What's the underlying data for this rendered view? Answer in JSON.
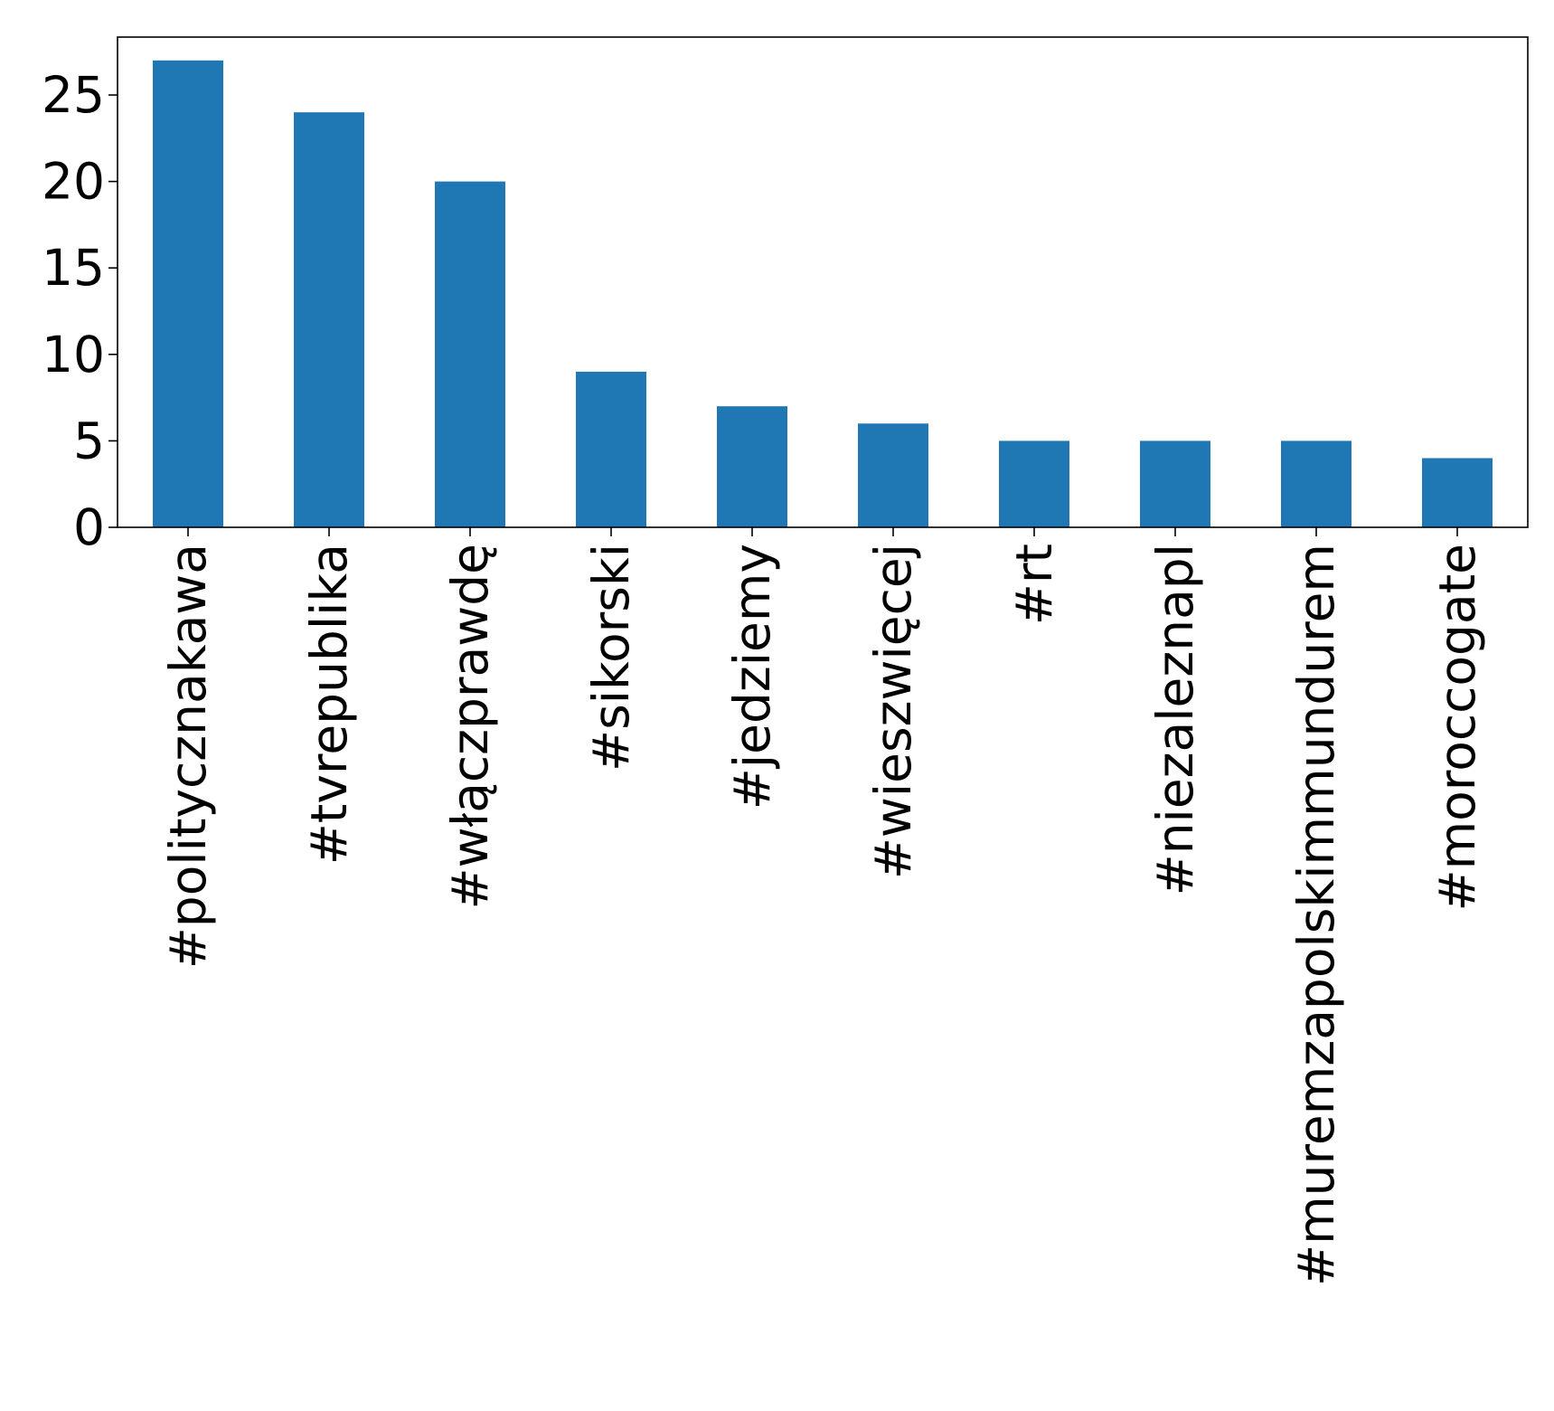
{
  "chart_data": {
    "type": "bar",
    "title": "",
    "xlabel": "",
    "ylabel": "",
    "categories": [
      "#politycznakawa",
      "#tvrepublika",
      "#włączprawdę",
      "#sikorski",
      "#jedziemy",
      "#wieszwięcej",
      "#rt",
      "#niezaleznapl",
      "#muremzapolskimmundurem",
      "#moroccogate"
    ],
    "values": [
      27,
      24,
      20,
      9,
      7,
      6,
      5,
      5,
      5,
      4
    ],
    "ylim": [
      0,
      28.35
    ],
    "yticks": [
      0,
      5,
      10,
      15,
      20,
      25
    ],
    "ytick_labels": [
      "0",
      "5",
      "10",
      "15",
      "20",
      "25"
    ],
    "grid": false,
    "legend": false,
    "bar_color": "#1f77b4"
  }
}
